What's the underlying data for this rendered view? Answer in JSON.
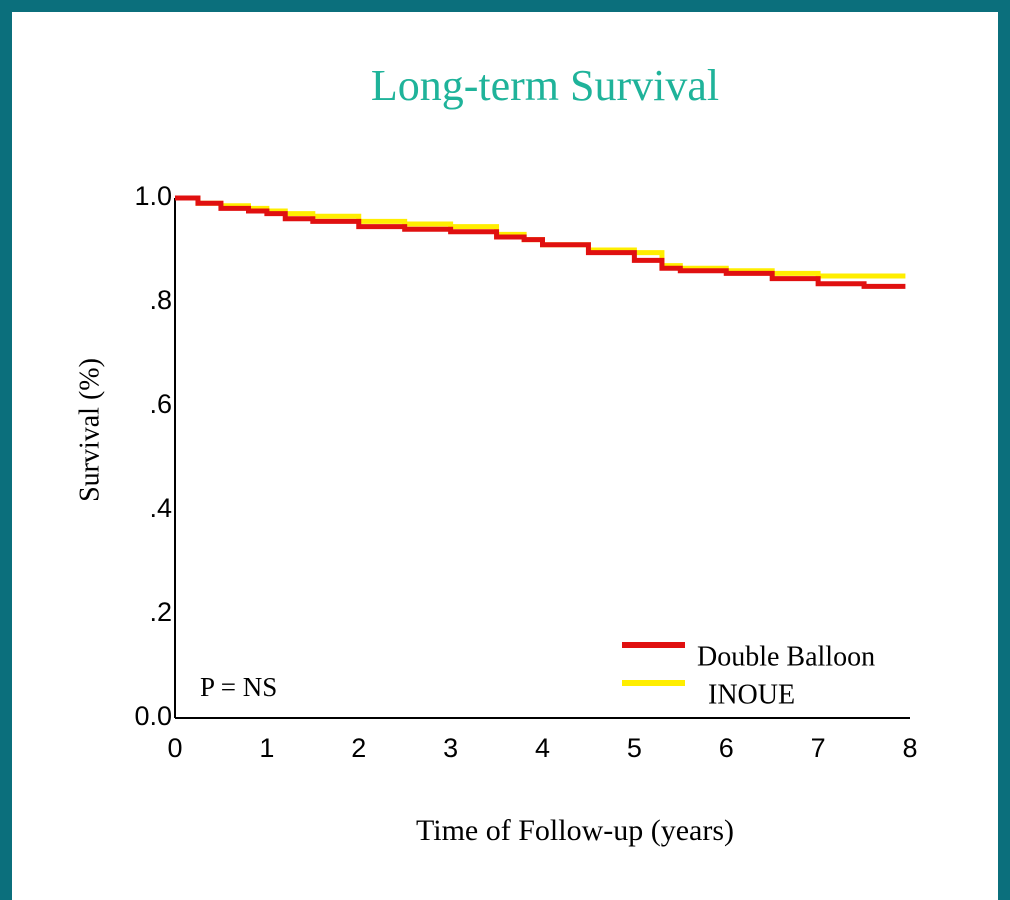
{
  "chart_data": {
    "type": "step",
    "title": "Long-term Survival",
    "x_label": "Time of Follow-up (years)",
    "y_label": "Survival  (%)",
    "annotation": "P = NS",
    "x": [
      0,
      0.25,
      0.5,
      0.8,
      1,
      1.2,
      1.5,
      2,
      2.5,
      3,
      3.5,
      3.8,
      4,
      4.5,
      5,
      5.3,
      5.5,
      6,
      6.5,
      7,
      7.5,
      7.95
    ],
    "series": [
      {
        "name": "Double Balloon",
        "color": "#e01010",
        "values": [
          1.0,
          0.99,
          0.98,
          0.975,
          0.97,
          0.96,
          0.955,
          0.945,
          0.94,
          0.935,
          0.925,
          0.92,
          0.91,
          0.895,
          0.88,
          0.865,
          0.86,
          0.855,
          0.845,
          0.835,
          0.83,
          0.83
        ]
      },
      {
        "name": "INOUE",
        "color": "#ffee00",
        "values": [
          1.0,
          0.99,
          0.985,
          0.98,
          0.975,
          0.97,
          0.965,
          0.955,
          0.95,
          0.945,
          0.93,
          0.92,
          0.91,
          0.9,
          0.895,
          0.87,
          0.865,
          0.86,
          0.855,
          0.85,
          0.85,
          0.85
        ]
      }
    ],
    "xlim": [
      0,
      8
    ],
    "xticks": [
      0,
      1,
      2,
      3,
      4,
      5,
      6,
      7,
      8
    ],
    "ylim": [
      0,
      1.0
    ],
    "yticks": [
      {
        "value": 0,
        "label": "0.0"
      },
      {
        "value": 0.2,
        "label": ".2"
      },
      {
        "value": 0.4,
        "label": ".4"
      },
      {
        "value": 0.6,
        "label": ".6"
      },
      {
        "value": 0.8,
        "label": ".8"
      },
      {
        "value": 1.0,
        "label": "1.0"
      }
    ],
    "grid": false
  }
}
